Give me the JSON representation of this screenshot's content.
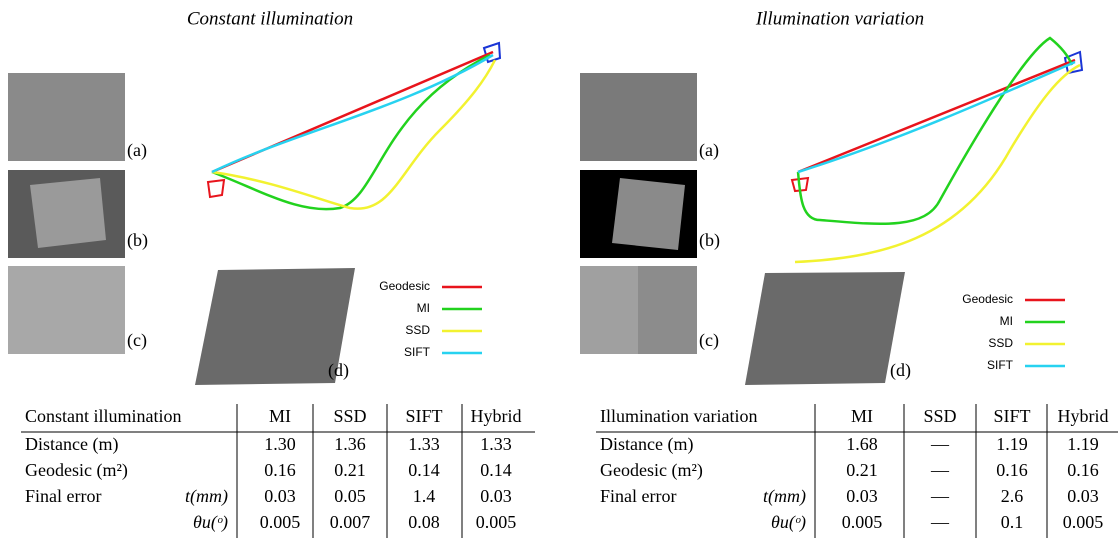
{
  "panels": [
    {
      "title": "Constant illumination",
      "image_labels": [
        "(a)",
        "(b)",
        "(c)",
        "(d)"
      ],
      "legend": [
        {
          "name": "Geodesic",
          "color": "#e8141c"
        },
        {
          "name": "MI",
          "color": "#22d21e"
        },
        {
          "name": "SSD",
          "color": "#f2f230"
        },
        {
          "name": "SIFT",
          "color": "#27d2f0"
        }
      ]
    },
    {
      "title": "Illumination variation",
      "image_labels": [
        "(a)",
        "(b)",
        "(c)",
        "(d)"
      ],
      "legend": [
        {
          "name": "Geodesic",
          "color": "#e8141c"
        },
        {
          "name": "MI",
          "color": "#22d21e"
        },
        {
          "name": "SSD",
          "color": "#f2f230"
        },
        {
          "name": "SIFT",
          "color": "#27d2f0"
        }
      ]
    }
  ],
  "tables": [
    {
      "header": [
        "Constant illumination",
        "MI",
        "SSD",
        "SIFT",
        "Hybrid"
      ],
      "rows": [
        {
          "label": "Distance (m)",
          "values": [
            "1.30",
            "1.36",
            "1.33",
            "1.33"
          ]
        },
        {
          "label": "Geodesic (m²)",
          "values": [
            "0.16",
            "0.21",
            "0.14",
            "0.14"
          ]
        },
        {
          "label": "Final error",
          "sublabel": "t(mm)",
          "values": [
            "0.03",
            "0.05",
            "1.4",
            "0.03"
          ]
        },
        {
          "sublabel": "θu(ᵒ)",
          "values": [
            "0.005",
            "0.007",
            "0.08",
            "0.005"
          ]
        }
      ]
    },
    {
      "header": [
        "Illumination variation",
        "MI",
        "SSD",
        "SIFT",
        "Hybrid"
      ],
      "rows": [
        {
          "label": "Distance (m)",
          "values": [
            "1.68",
            "—",
            "1.19",
            "1.19"
          ]
        },
        {
          "label": "Geodesic (m²)",
          "values": [
            "0.21",
            "—",
            "0.16",
            "0.16"
          ]
        },
        {
          "label": "Final error",
          "sublabel": "t(mm)",
          "values": [
            "0.03",
            "—",
            "2.6",
            "0.03"
          ]
        },
        {
          "sublabel": "θu(ᵒ)",
          "values": [
            "0.005",
            "—",
            "0.1",
            "0.005"
          ]
        }
      ]
    }
  ]
}
